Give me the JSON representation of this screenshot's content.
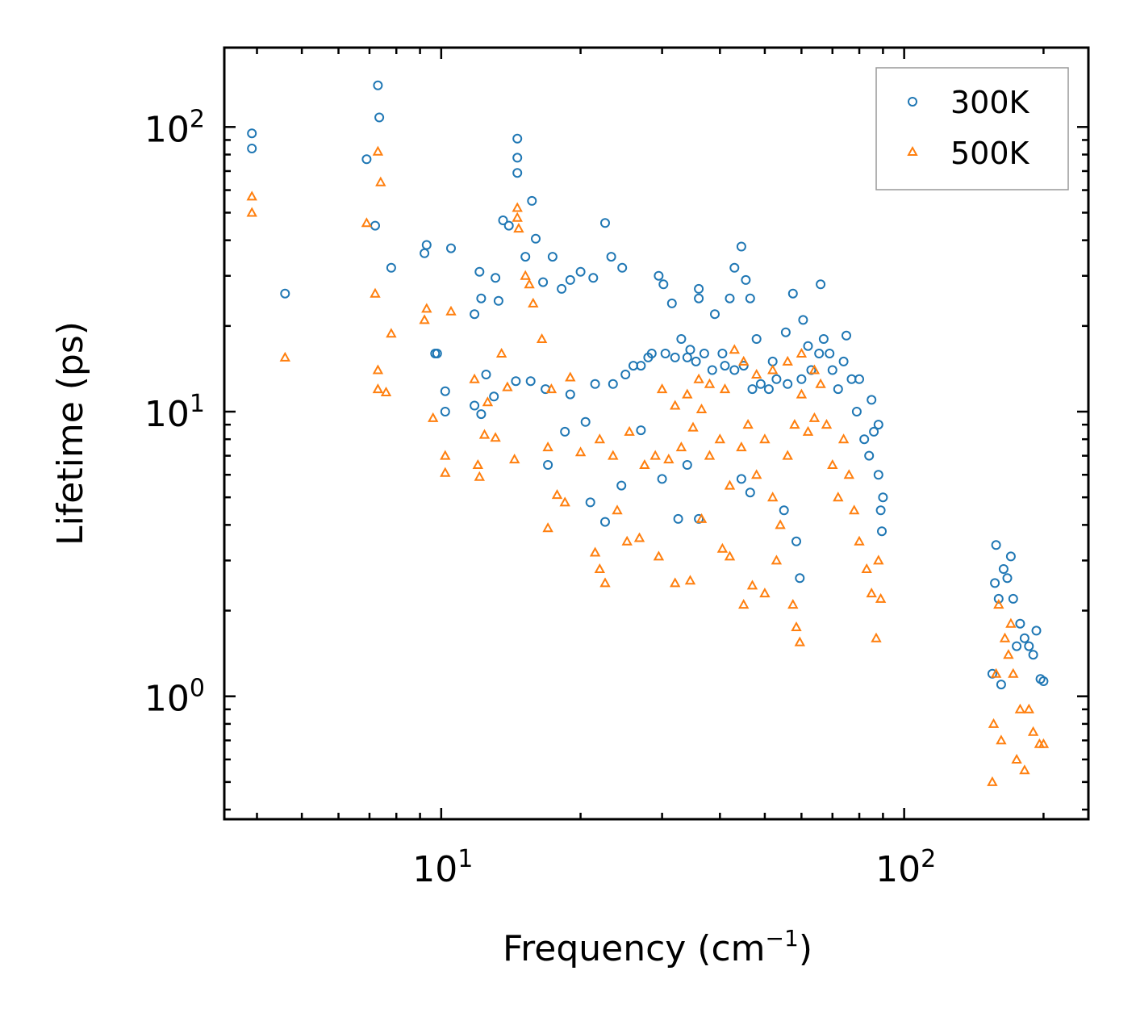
{
  "chart_data": {
    "type": "scatter",
    "xscale": "log",
    "yscale": "log",
    "xlim": [
      3.4,
      250
    ],
    "ylim": [
      0.37,
      190
    ],
    "xlabel": "Frequency (cm",
    "xlabel_sup": "−1",
    "xlabel_end": ")",
    "ylabel": "Lifetime (ps)",
    "x_ticks": [
      {
        "value": 10,
        "base": "10",
        "exp": "1"
      },
      {
        "value": 100,
        "base": "10",
        "exp": "2"
      }
    ],
    "y_ticks": [
      {
        "value": 1,
        "base": "10",
        "exp": "0"
      },
      {
        "value": 10,
        "base": "10",
        "exp": "1"
      },
      {
        "value": 100,
        "base": "10",
        "exp": "2"
      }
    ],
    "legend_position": "top-right",
    "series": [
      {
        "name": "300K",
        "marker": "circle",
        "color": "#1f77b4",
        "points": [
          [
            3.9,
            95
          ],
          [
            3.9,
            84
          ],
          [
            4.6,
            26
          ],
          [
            6.9,
            77
          ],
          [
            7.2,
            45
          ],
          [
            7.3,
            140
          ],
          [
            7.35,
            108
          ],
          [
            7.8,
            32
          ],
          [
            9.2,
            36
          ],
          [
            9.3,
            38.5
          ],
          [
            9.7,
            16
          ],
          [
            9.8,
            16
          ],
          [
            10.2,
            11.8
          ],
          [
            10.2,
            10
          ],
          [
            10.5,
            37.5
          ],
          [
            11.8,
            22
          ],
          [
            12.1,
            31
          ],
          [
            12.2,
            25
          ],
          [
            12.5,
            13.5
          ],
          [
            13.1,
            29.5
          ],
          [
            13.3,
            24.5
          ],
          [
            13.6,
            47
          ],
          [
            14.0,
            45
          ],
          [
            14.6,
            91
          ],
          [
            14.6,
            78
          ],
          [
            14.6,
            69
          ],
          [
            15.2,
            35
          ],
          [
            15.7,
            55
          ],
          [
            16.0,
            40.5
          ],
          [
            16.6,
            28.5
          ],
          [
            17.4,
            35
          ],
          [
            18.2,
            27
          ],
          [
            19.0,
            29
          ],
          [
            20.0,
            31
          ],
          [
            21.3,
            29.5
          ],
          [
            22.6,
            46
          ],
          [
            23.3,
            35
          ],
          [
            24.6,
            32
          ],
          [
            26.0,
            14.5
          ],
          [
            28.5,
            16
          ],
          [
            29.5,
            30
          ],
          [
            30.2,
            28
          ],
          [
            31.5,
            24
          ],
          [
            33.0,
            18
          ],
          [
            34.5,
            16.5
          ],
          [
            36.0,
            27
          ],
          [
            36.0,
            25
          ],
          [
            39.0,
            22
          ],
          [
            40.5,
            16
          ],
          [
            42.0,
            25
          ],
          [
            43.0,
            32
          ],
          [
            44.5,
            38
          ],
          [
            45.5,
            29
          ],
          [
            46.5,
            25
          ],
          [
            48.0,
            18
          ],
          [
            52.0,
            15
          ],
          [
            55.5,
            19
          ],
          [
            57.5,
            26
          ],
          [
            60.5,
            21
          ],
          [
            62.0,
            17
          ],
          [
            66.0,
            28
          ],
          [
            69.0,
            16
          ],
          [
            75.0,
            18.5
          ],
          [
            80.0,
            13
          ],
          [
            85.0,
            11
          ],
          [
            88.0,
            9
          ],
          [
            90.0,
            5
          ],
          [
            89.5,
            3.8
          ],
          [
            32.5,
            4.2
          ],
          [
            36.0,
            4.2
          ],
          [
            44.5,
            5.8
          ],
          [
            46.5,
            5.2
          ],
          [
            55.0,
            4.5
          ],
          [
            58.5,
            3.5
          ],
          [
            59.5,
            2.6
          ],
          [
            21.0,
            4.8
          ],
          [
            22.6,
            4.1
          ],
          [
            24.5,
            5.5
          ],
          [
            17.0,
            6.5
          ],
          [
            18.5,
            8.5
          ],
          [
            20.5,
            9.2
          ],
          [
            27.0,
            8.6
          ],
          [
            30.0,
            5.8
          ],
          [
            34.0,
            6.5
          ],
          [
            11.8,
            10.5
          ],
          [
            12.2,
            9.8
          ],
          [
            13.0,
            11.3
          ],
          [
            14.5,
            12.8
          ],
          [
            15.6,
            12.8
          ],
          [
            16.8,
            12
          ],
          [
            19.0,
            11.5
          ],
          [
            21.5,
            12.5
          ],
          [
            23.5,
            12.5
          ],
          [
            25.0,
            13.5
          ],
          [
            27.0,
            14.5
          ],
          [
            28.0,
            15.5
          ],
          [
            30.5,
            16
          ],
          [
            32.0,
            15.5
          ],
          [
            34.0,
            15.5
          ],
          [
            35.5,
            15
          ],
          [
            37.0,
            16
          ],
          [
            38.5,
            14
          ],
          [
            41.0,
            14.5
          ],
          [
            43.0,
            14
          ],
          [
            45.0,
            14.5
          ],
          [
            47.0,
            12
          ],
          [
            49.0,
            12.5
          ],
          [
            51.0,
            12
          ],
          [
            53.0,
            13
          ],
          [
            56.0,
            12.5
          ],
          [
            60.0,
            13
          ],
          [
            63.0,
            14
          ],
          [
            65.5,
            16
          ],
          [
            67.0,
            18
          ],
          [
            70.0,
            14
          ],
          [
            72.0,
            12
          ],
          [
            74.0,
            15
          ],
          [
            77.0,
            13
          ],
          [
            79.0,
            10
          ],
          [
            82.0,
            8
          ],
          [
            84.0,
            7
          ],
          [
            86.0,
            8.5
          ],
          [
            88.0,
            6
          ],
          [
            89.0,
            4.5
          ],
          [
            155.0,
            1.2
          ],
          [
            157.0,
            2.5
          ],
          [
            158.0,
            3.4
          ],
          [
            160.0,
            2.2
          ],
          [
            162.0,
            1.1
          ],
          [
            164.0,
            2.8
          ],
          [
            167.0,
            2.6
          ],
          [
            170.0,
            3.1
          ],
          [
            172.0,
            2.2
          ],
          [
            175.0,
            1.5
          ],
          [
            178.0,
            1.8
          ],
          [
            182.0,
            1.6
          ],
          [
            186.0,
            1.5
          ],
          [
            190.0,
            1.4
          ],
          [
            193.0,
            1.7
          ],
          [
            197.0,
            1.15
          ],
          [
            200.0,
            1.13
          ]
        ]
      },
      {
        "name": "500K",
        "marker": "triangle",
        "color": "#ff7f0e",
        "points": [
          [
            3.9,
            57
          ],
          [
            3.9,
            50
          ],
          [
            4.6,
            15.5
          ],
          [
            6.9,
            46
          ],
          [
            7.2,
            26
          ],
          [
            7.3,
            82
          ],
          [
            7.4,
            64
          ],
          [
            7.3,
            14
          ],
          [
            7.3,
            12
          ],
          [
            7.6,
            11.7
          ],
          [
            7.8,
            18.8
          ],
          [
            9.2,
            21
          ],
          [
            9.3,
            23
          ],
          [
            9.6,
            9.5
          ],
          [
            10.2,
            7
          ],
          [
            10.2,
            6.1
          ],
          [
            10.5,
            22.5
          ],
          [
            11.8,
            13
          ],
          [
            12.0,
            6.5
          ],
          [
            12.1,
            5.9
          ],
          [
            12.4,
            8.3
          ],
          [
            12.6,
            10.8
          ],
          [
            13.1,
            8.1
          ],
          [
            13.5,
            16
          ],
          [
            13.9,
            12.2
          ],
          [
            14.4,
            6.8
          ],
          [
            14.6,
            52
          ],
          [
            14.6,
            48
          ],
          [
            14.7,
            44
          ],
          [
            15.2,
            30
          ],
          [
            15.5,
            28
          ],
          [
            15.8,
            24
          ],
          [
            16.5,
            18
          ],
          [
            17.0,
            7.5
          ],
          [
            17.3,
            12
          ],
          [
            17.8,
            5.1
          ],
          [
            18.5,
            4.8
          ],
          [
            19.0,
            13.2
          ],
          [
            17.0,
            3.9
          ],
          [
            21.5,
            3.2
          ],
          [
            22.0,
            2.8
          ],
          [
            22.6,
            2.5
          ],
          [
            24.0,
            4.5
          ],
          [
            25.2,
            3.5
          ],
          [
            26.8,
            3.6
          ],
          [
            29.5,
            3.1
          ],
          [
            32.0,
            2.5
          ],
          [
            34.5,
            2.55
          ],
          [
            36.5,
            4.2
          ],
          [
            40.5,
            3.3
          ],
          [
            42.0,
            3.1
          ],
          [
            45.0,
            2.1
          ],
          [
            47.0,
            2.45
          ],
          [
            50.0,
            2.3
          ],
          [
            53.0,
            3.0
          ],
          [
            57.5,
            2.1
          ],
          [
            58.5,
            1.75
          ],
          [
            59.5,
            1.55
          ],
          [
            20.0,
            7.2
          ],
          [
            22.0,
            8.0
          ],
          [
            23.5,
            7.0
          ],
          [
            25.5,
            8.5
          ],
          [
            27.5,
            6.5
          ],
          [
            29.0,
            7.0
          ],
          [
            31.0,
            6.8
          ],
          [
            33.0,
            7.5
          ],
          [
            35.0,
            8.8
          ],
          [
            36.5,
            10.2
          ],
          [
            38.0,
            7.0
          ],
          [
            40.0,
            8.0
          ],
          [
            42.0,
            5.5
          ],
          [
            44.5,
            7.5
          ],
          [
            46.0,
            9.0
          ],
          [
            48.0,
            6.0
          ],
          [
            50.0,
            8.0
          ],
          [
            52.0,
            5.0
          ],
          [
            54.0,
            4.0
          ],
          [
            56.0,
            7.0
          ],
          [
            58.0,
            9.0
          ],
          [
            60.0,
            11.5
          ],
          [
            62.0,
            8.5
          ],
          [
            64.0,
            9.5
          ],
          [
            66.0,
            12.5
          ],
          [
            68.0,
            9.0
          ],
          [
            70.0,
            6.5
          ],
          [
            72.0,
            5.0
          ],
          [
            74.0,
            8.0
          ],
          [
            76.0,
            6.0
          ],
          [
            78.0,
            4.5
          ],
          [
            80.0,
            3.5
          ],
          [
            83.0,
            2.8
          ],
          [
            85.0,
            2.3
          ],
          [
            87.0,
            1.6
          ],
          [
            88.0,
            3.0
          ],
          [
            89.0,
            2.2
          ],
          [
            30.0,
            12.0
          ],
          [
            32.0,
            10.5
          ],
          [
            34.0,
            11.5
          ],
          [
            36.0,
            13.0
          ],
          [
            38.0,
            12.5
          ],
          [
            41.0,
            12.0
          ],
          [
            43.0,
            16.5
          ],
          [
            45.0,
            15.0
          ],
          [
            48.0,
            13.5
          ],
          [
            52.0,
            14.0
          ],
          [
            56.0,
            15.0
          ],
          [
            60.0,
            16.0
          ],
          [
            64.0,
            14.0
          ],
          [
            155.0,
            0.5
          ],
          [
            156.0,
            0.8
          ],
          [
            158.0,
            1.2
          ],
          [
            160.0,
            2.1
          ],
          [
            162.0,
            0.7
          ],
          [
            165.0,
            1.6
          ],
          [
            168.0,
            1.4
          ],
          [
            170.0,
            1.8
          ],
          [
            172.0,
            1.2
          ],
          [
            175.0,
            0.6
          ],
          [
            178.0,
            0.9
          ],
          [
            182.0,
            0.55
          ],
          [
            186.0,
            0.9
          ],
          [
            190.0,
            0.75
          ],
          [
            196.0,
            0.68
          ],
          [
            200.0,
            0.68
          ]
        ]
      }
    ]
  }
}
